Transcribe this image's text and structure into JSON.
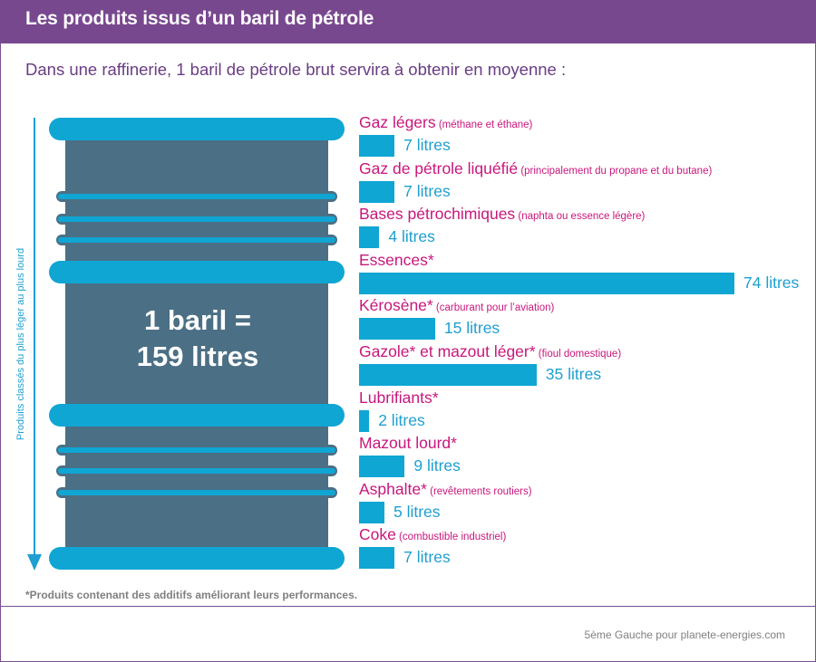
{
  "header": {
    "title": "Les produits issus d’un baril de pétrole"
  },
  "subtitle": "Dans une raffinerie, 1 baril de pétrole brut servira à obtenir en moyenne :",
  "side_axis_label": "Produits classés du plus léger au plus lourd",
  "barrel": {
    "line1": "1 baril =",
    "line2": "159 litres"
  },
  "footnote": "*Produits contenant des additifs améliorant leurs performances.",
  "credit": "5ème Gauche pour planete-energies.com",
  "colors": {
    "header": "#78488f",
    "category": "#c8177c",
    "bar": "#0fa6d4",
    "value_text": "#1e9fd0",
    "barrel": "#4b6f85"
  },
  "chart_data": {
    "type": "bar",
    "orientation": "horizontal",
    "title": "Les produits issus d’un baril de pétrole",
    "unit": "litres",
    "total": 159,
    "categories": [
      {
        "name": "Gaz légers",
        "note": "(méthane et éthane)",
        "value": 7,
        "label": "7 litres"
      },
      {
        "name": "Gaz de pétrole liquéfié",
        "note": "(principalement du propane et du butane)",
        "value": 7,
        "label": "7 litres"
      },
      {
        "name": "Bases pétrochimiques",
        "note": "(naphta ou essence légère)",
        "value": 4,
        "label": "4 litres"
      },
      {
        "name": "Essences*",
        "note": "",
        "value": 74,
        "label": "74 litres"
      },
      {
        "name": "Kérosène*",
        "note": "(carburant pour l’aviation)",
        "value": 15,
        "label": "15 litres"
      },
      {
        "name": "Gazole* et mazout léger*",
        "note": "(fioul domestique)",
        "value": 35,
        "label": "35 litres"
      },
      {
        "name": "Lubrifiants*",
        "note": "",
        "value": 2,
        "label": "2 litres"
      },
      {
        "name": "Mazout lourd*",
        "note": "",
        "value": 9,
        "label": "9 litres"
      },
      {
        "name": "Asphalte*",
        "note": "(revêtements routiers)",
        "value": 5,
        "label": "5 litres"
      },
      {
        "name": "Coke",
        "note": "(combustible industriel)",
        "value": 7,
        "label": "7 litres"
      }
    ]
  }
}
